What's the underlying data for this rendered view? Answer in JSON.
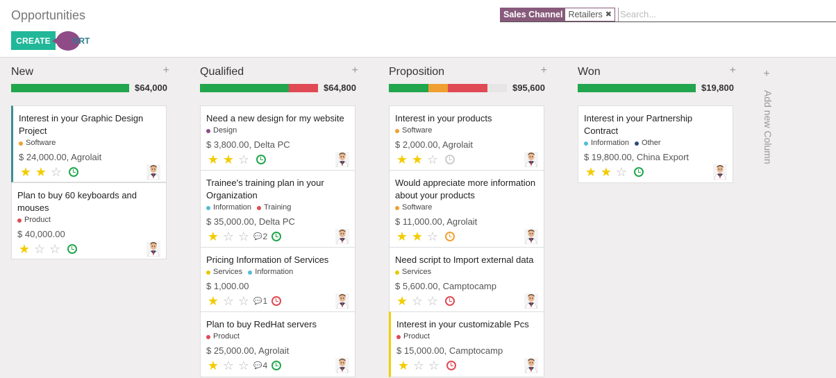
{
  "header": {
    "title": "Opportunities",
    "create_label": "CREATE",
    "import_label": "ORT",
    "facet_label": "Sales Channel",
    "facet_value": "Retailers",
    "facet_close": "✖",
    "search_placeholder": "Search..."
  },
  "columns": [
    {
      "title": "New",
      "add": "+",
      "sum": "$64,000",
      "progress": [
        {
          "color": "#21a64d",
          "fraction": 1.0
        }
      ],
      "cards": [
        {
          "title": "Interest in your Graphic Design Project",
          "tags": [
            {
              "label": "Software",
              "color": "#f0a030"
            }
          ],
          "amount": "$ 24,000.00, Agrolait",
          "stars": 2,
          "clock": "green",
          "comments": "",
          "accent": "teal"
        },
        {
          "title": "Plan to buy 60 keyboards and mouses",
          "tags": [
            {
              "label": "Product",
              "color": "#e04a54"
            }
          ],
          "amount": "$ 40,000.00",
          "stars": 1,
          "clock": "green",
          "comments": "",
          "accent": ""
        }
      ]
    },
    {
      "title": "Qualified",
      "add": "+",
      "sum": "$64,800",
      "progress": [
        {
          "color": "#21a64d",
          "fraction": 0.755
        },
        {
          "color": "#e04a54",
          "fraction": 0.245
        }
      ],
      "cards": [
        {
          "title": "Need a new design for my website",
          "tags": [
            {
              "label": "Design",
              "color": "#8e4b86"
            }
          ],
          "amount": "$ 3,800.00, Delta PC",
          "stars": 2,
          "clock": "green",
          "comments": "",
          "accent": ""
        },
        {
          "title": "Trainee's training plan in your Organization",
          "tags": [
            {
              "label": "Information",
              "color": "#55bcd8"
            },
            {
              "label": "Training",
              "color": "#e04a54"
            }
          ],
          "amount": "$ 35,000.00, Delta PC",
          "stars": 1,
          "clock": "green",
          "comments": "2",
          "accent": ""
        },
        {
          "title": "Pricing Information of Services",
          "tags": [
            {
              "label": "Services",
              "color": "#e8c800"
            },
            {
              "label": "Information",
              "color": "#55bcd8"
            }
          ],
          "amount": "$ 1,000.00",
          "stars": 1,
          "clock": "red",
          "comments": "1",
          "accent": ""
        },
        {
          "title": "Plan to buy RedHat servers",
          "tags": [
            {
              "label": "Product",
              "color": "#e04a54"
            }
          ],
          "amount": "$ 25,000.00, Agrolait",
          "stars": 1,
          "clock": "green",
          "comments": "4",
          "accent": ""
        }
      ]
    },
    {
      "title": "Proposition",
      "add": "+",
      "sum": "$95,600",
      "progress": [
        {
          "color": "#21a64d",
          "fraction": 0.335
        },
        {
          "color": "#f0a030",
          "fraction": 0.165
        },
        {
          "color": "#e04a54",
          "fraction": 0.335
        }
      ],
      "cards": [
        {
          "title": "Interest in your products",
          "tags": [
            {
              "label": "Software",
              "color": "#f0a030"
            }
          ],
          "amount": "$ 2,000.00, Agrolait",
          "stars": 2,
          "clock": "grey",
          "comments": "",
          "accent": ""
        },
        {
          "title": "Would appreciate more information about your products",
          "tags": [
            {
              "label": "Software",
              "color": "#f0a030"
            }
          ],
          "amount": "$ 11,000.00, Agrolait",
          "stars": 2,
          "clock": "orange",
          "comments": "",
          "accent": ""
        },
        {
          "title": "Need script to Import external data",
          "tags": [
            {
              "label": "Services",
              "color": "#e8c800"
            }
          ],
          "amount": "$ 5,600.00, Camptocamp",
          "stars": 1,
          "clock": "red",
          "comments": "",
          "accent": ""
        },
        {
          "title": "Interest in your customizable Pcs",
          "tags": [
            {
              "label": "Product",
              "color": "#e04a54"
            }
          ],
          "amount": "$ 15,000.00, Camptocamp",
          "stars": 1,
          "clock": "red",
          "comments": "",
          "accent": "yellow"
        }
      ]
    },
    {
      "title": "Won",
      "add": "+",
      "sum": "$19,800",
      "progress": [
        {
          "color": "#21a64d",
          "fraction": 1.0
        }
      ],
      "cards": [
        {
          "title": "Interest in your Partnership Contract",
          "tags": [
            {
              "label": "Information",
              "color": "#55bcd8"
            },
            {
              "label": "Other",
              "color": "#2c4d7a"
            }
          ],
          "amount": "$ 19,800.00, China Export",
          "stars": 2,
          "clock": "green",
          "comments": "",
          "accent": ""
        }
      ]
    }
  ],
  "add_column": {
    "plus": "+",
    "label": "Add new Column"
  }
}
